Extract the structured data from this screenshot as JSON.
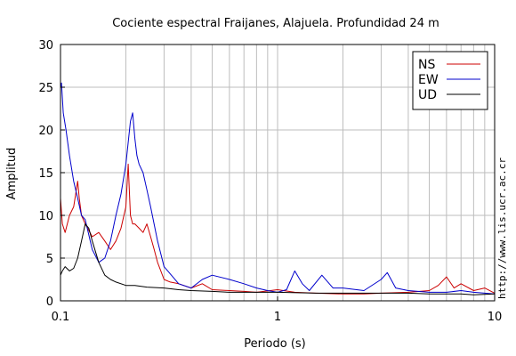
{
  "chart_data": {
    "type": "line",
    "title": "Cociente espectral Fraijanes, Alajuela. Profundidad 24 m",
    "xlabel": "Periodo (s)",
    "ylabel": "Amplitud",
    "xscale": "log",
    "xlim": [
      0.1,
      10
    ],
    "ylim": [
      0,
      30
    ],
    "xticks": [
      {
        "value": 0.1,
        "label": "0.1"
      },
      {
        "value": 1,
        "label": "1"
      },
      {
        "value": 10,
        "label": "10"
      }
    ],
    "yticks": [
      0,
      5,
      10,
      15,
      20,
      25,
      30
    ],
    "grid": true,
    "legend_position": "top-right",
    "series": [
      {
        "name": "NS",
        "color": "#cc0000",
        "x": [
          0.1,
          0.102,
          0.105,
          0.11,
          0.115,
          0.12,
          0.122,
          0.125,
          0.13,
          0.14,
          0.15,
          0.16,
          0.17,
          0.18,
          0.19,
          0.2,
          0.205,
          0.21,
          0.215,
          0.22,
          0.23,
          0.24,
          0.25,
          0.26,
          0.27,
          0.28,
          0.3,
          0.32,
          0.35,
          0.4,
          0.45,
          0.5,
          0.6,
          0.7,
          0.8,
          1.0,
          1.2,
          1.5,
          2.0,
          2.5,
          3.0,
          4.0,
          5.0,
          5.5,
          6.0,
          6.5,
          7.0,
          8.0,
          9.0,
          10.0
        ],
        "y": [
          12,
          9,
          8,
          10,
          11,
          14,
          12,
          10,
          9,
          7.5,
          8,
          7,
          6,
          7,
          8.5,
          11,
          16,
          10,
          9,
          9,
          8.5,
          8,
          9,
          7.5,
          6,
          4.5,
          2.5,
          2.2,
          2,
          1.5,
          2,
          1.3,
          1.2,
          1.1,
          1.0,
          1.3,
          1.0,
          0.9,
          0.8,
          0.8,
          0.9,
          1.0,
          1.2,
          1.8,
          2.8,
          1.5,
          2.0,
          1.2,
          1.5,
          0.9
        ]
      },
      {
        "name": "EW",
        "color": "#0000cc",
        "x": [
          0.1,
          0.101,
          0.103,
          0.106,
          0.11,
          0.115,
          0.12,
          0.125,
          0.13,
          0.14,
          0.15,
          0.16,
          0.17,
          0.18,
          0.19,
          0.2,
          0.21,
          0.215,
          0.22,
          0.225,
          0.23,
          0.24,
          0.25,
          0.26,
          0.28,
          0.3,
          0.35,
          0.4,
          0.45,
          0.5,
          0.6,
          0.7,
          0.8,
          0.9,
          1.0,
          1.1,
          1.2,
          1.3,
          1.4,
          1.6,
          1.8,
          2.0,
          2.5,
          3.0,
          3.2,
          3.5,
          4.0,
          5.0,
          6.0,
          7.0,
          8.0,
          9.0,
          10.0
        ],
        "y": [
          25,
          25.5,
          22,
          20,
          17,
          14,
          12,
          10,
          9.5,
          6,
          4.5,
          5,
          7,
          10,
          12.5,
          16,
          21,
          22,
          19,
          17,
          16,
          15,
          13,
          11,
          7,
          4,
          2,
          1.5,
          2.5,
          3,
          2.5,
          2,
          1.5,
          1.2,
          1.0,
          1.3,
          3.5,
          2,
          1.2,
          3,
          1.5,
          1.5,
          1.2,
          2.5,
          3.3,
          1.5,
          1.2,
          1.0,
          1.0,
          1.2,
          1.0,
          0.9,
          0.8
        ]
      },
      {
        "name": "UD",
        "color": "#000000",
        "x": [
          0.1,
          0.102,
          0.105,
          0.11,
          0.115,
          0.12,
          0.125,
          0.13,
          0.135,
          0.14,
          0.15,
          0.16,
          0.17,
          0.18,
          0.2,
          0.22,
          0.25,
          0.3,
          0.35,
          0.4,
          0.5,
          0.6,
          0.8,
          1.0,
          1.5,
          2.0,
          3.0,
          4.0,
          5.0,
          6.0,
          7.0,
          8.0,
          10.0
        ],
        "y": [
          3,
          3.5,
          4,
          3.5,
          3.8,
          5,
          7,
          9,
          8.5,
          7,
          4.5,
          3,
          2.5,
          2.2,
          1.8,
          1.8,
          1.6,
          1.5,
          1.3,
          1.2,
          1.1,
          1.0,
          1.0,
          1.0,
          0.9,
          0.9,
          0.9,
          0.9,
          0.8,
          0.8,
          0.8,
          0.7,
          0.8
        ]
      }
    ]
  },
  "credit_text": "http://www.lis.ucr.ac.cr"
}
